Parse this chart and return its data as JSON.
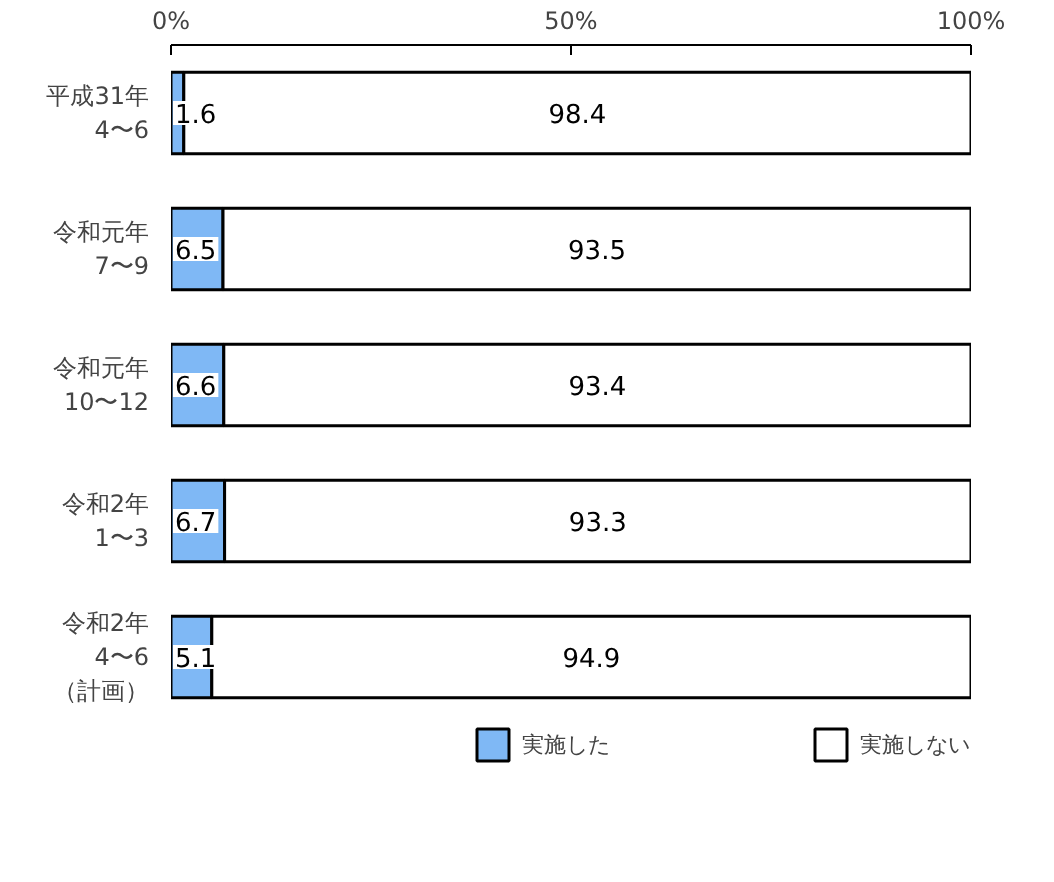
{
  "chart_data": {
    "type": "bar",
    "orientation": "horizontal",
    "stacked": true,
    "categories": [
      "平成31年\n4〜6",
      "令和元年\n7〜9",
      "令和元年\n10〜12",
      "令和2年\n1〜3",
      "令和2年\n4〜6\n（計画）"
    ],
    "series": [
      {
        "name": "実施した",
        "color": "#7fb8f5",
        "values": [
          1.6,
          6.5,
          6.6,
          6.7,
          5.1
        ]
      },
      {
        "name": "実施しない",
        "color": "#ffffff",
        "values": [
          98.4,
          93.5,
          93.4,
          93.3,
          94.9
        ]
      }
    ],
    "xlim": [
      0,
      100
    ],
    "xticks": [
      {
        "value": 0,
        "label": "0%"
      },
      {
        "value": 50,
        "label": "50%"
      },
      {
        "value": 100,
        "label": "100%"
      }
    ],
    "data_labels": true,
    "legend": "bottom",
    "grid": false
  }
}
